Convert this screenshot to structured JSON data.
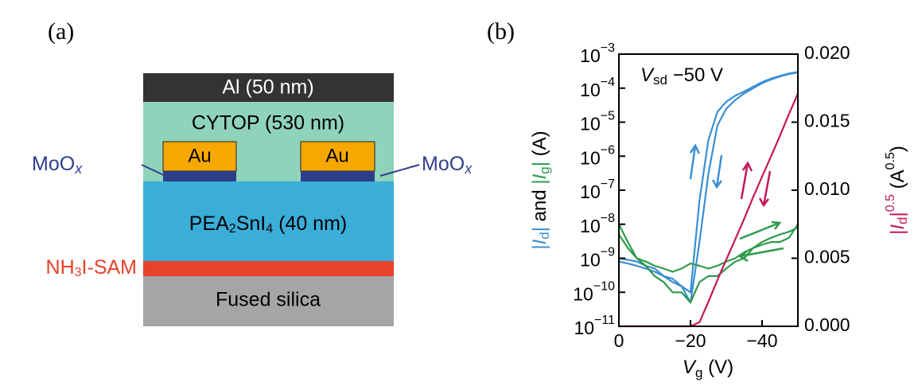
{
  "panel_a": {
    "label": "(a)",
    "al": "Al (50 nm)",
    "cytop": "CYTOP (530 nm)",
    "au_left": "Au",
    "au_right": "Au",
    "moox_left": [
      "MoO",
      "x"
    ],
    "moox_right": [
      "MoO",
      "x"
    ],
    "pea": [
      "PEA",
      "2",
      "SnI",
      "4",
      " (40 nm)"
    ],
    "sam": [
      "NH",
      "3",
      "I-SAM"
    ],
    "silica": "Fused silica"
  },
  "chart_data": {
    "type": "line",
    "panel_label": "(b)",
    "annotation": [
      "V",
      "sd",
      " −50 V"
    ],
    "xlabel": [
      "V",
      "g",
      " (V)"
    ],
    "ylabel": [
      "|",
      "I",
      "d",
      "|",
      " and ",
      "|",
      "I",
      "g",
      "|",
      " (A)"
    ],
    "y2label": [
      "|",
      "I",
      "d",
      "|",
      "0.5",
      " (A",
      "0.5",
      ")"
    ],
    "x": [
      0,
      -2.5,
      -5,
      -7.5,
      -10,
      -12.5,
      -15,
      -17.5,
      -20,
      -22.5,
      -25,
      -27.5,
      -30,
      -32.5,
      -35,
      -37.5,
      -40,
      -42.5,
      -45,
      -47.5,
      -50
    ],
    "xlim": [
      0,
      -50
    ],
    "xticks": [
      0,
      {
        "value": -20,
        "label": "−20"
      },
      {
        "value": -40,
        "label": "−40"
      }
    ],
    "ylog": true,
    "ylim": [
      1e-11,
      0.001
    ],
    "yticks": [
      {
        "value": 1e-11,
        "label": "10−11"
      },
      {
        "value": 1e-10,
        "label": "10−10"
      },
      {
        "value": 1e-09,
        "label": "10−9"
      },
      {
        "value": 1e-08,
        "label": "10−8"
      },
      {
        "value": 1e-07,
        "label": "10−7"
      },
      {
        "value": 1e-06,
        "label": "10−6"
      },
      {
        "value": 1e-05,
        "label": "10−5"
      },
      {
        "value": 0.0001,
        "label": "10−4"
      },
      {
        "value": 0.001,
        "label": "10−3"
      }
    ],
    "y2lim": [
      0,
      0.02
    ],
    "y2ticks": [
      {
        "value": 0,
        "label": "0.000"
      },
      {
        "value": 0.005,
        "label": "0.005"
      },
      {
        "value": 0.01,
        "label": "0.010"
      },
      {
        "value": 0.015,
        "label": "0.015"
      },
      {
        "value": 0.02,
        "label": "0.020"
      }
    ],
    "series": [
      {
        "color": "#3a8fd2",
        "values": [
          1e-09,
          9e-10,
          8e-10,
          6e-10,
          5e-10,
          3e-10,
          2e-10,
          1.5e-10,
          1e-10,
          5e-08,
          3e-06,
          2e-05,
          4e-05,
          6e-05,
          8e-05,
          0.00011,
          0.00015,
          0.00019,
          0.00023,
          0.00027,
          0.0003
        ]
      },
      {
        "color": "#3a8fd2",
        "values": [
          8e-10,
          7e-10,
          6e-10,
          5e-10,
          4e-10,
          3e-10,
          2.5e-10,
          1.5e-10,
          5e-11,
          3e-09,
          3e-07,
          8e-06,
          2.5e-05,
          4.5e-05,
          7e-05,
          0.0001,
          0.00014,
          0.00018,
          0.00022,
          0.00026,
          0.00029
        ]
      },
      {
        "color": "#2e9a4a",
        "values": [
          1e-08,
          3e-09,
          1e-09,
          6e-10,
          3e-10,
          2e-10,
          1e-10,
          1e-10,
          5e-11,
          2e-10,
          3e-10,
          3e-10,
          5e-10,
          8e-10,
          1e-09,
          2e-09,
          3e-09,
          4e-09,
          5e-09,
          6e-09,
          8e-09
        ]
      },
      {
        "color": "#2e9a4a",
        "values": [
          5e-09,
          2e-09,
          1e-09,
          8e-10,
          6e-10,
          5e-10,
          4e-10,
          5e-10,
          7e-10,
          6e-10,
          5e-10,
          6e-10,
          8e-10,
          1e-09,
          1.5e-09,
          2e-09,
          2.5e-09,
          3e-09,
          3e-09,
          4e-09,
          1e-08
        ]
      },
      {
        "color": "#c2185b",
        "axis": "y2",
        "values": [
          0,
          0,
          0,
          0,
          0,
          0,
          0,
          0,
          0,
          0.0003,
          0.0018,
          0.0034,
          0.0049,
          0.0064,
          0.0079,
          0.0095,
          0.011,
          0.0125,
          0.014,
          0.0156,
          0.0171
        ]
      }
    ]
  }
}
